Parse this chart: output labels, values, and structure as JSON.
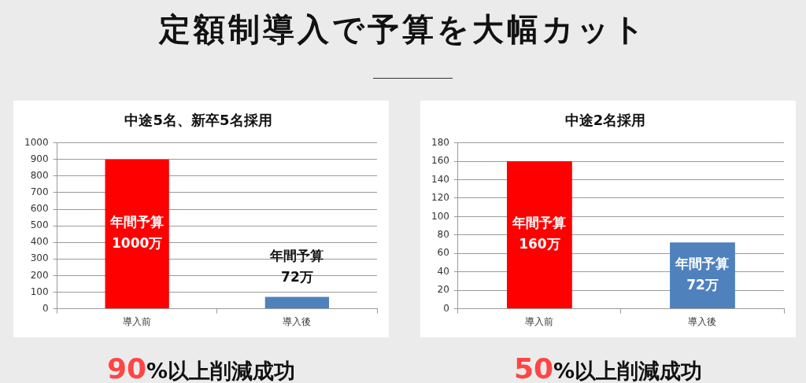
{
  "chart_data": [
    {
      "type": "other",
      "title": "定額制導入で予算を大幅カット"
    },
    {
      "type": "bar",
      "title": "中途5名、新卒5名採用",
      "categories": [
        "導入前",
        "導入後"
      ],
      "values": [
        900,
        72
      ],
      "colors": [
        "#ff0000",
        "#4f81bd"
      ],
      "ylim": [
        0,
        1000
      ],
      "yticks": [
        0,
        100,
        200,
        300,
        400,
        500,
        600,
        700,
        800,
        900,
        1000
      ],
      "grid": "y",
      "value_labels": [
        "年間予算\n1000万",
        "年間予算\n72万"
      ],
      "annotations": [
        "90%以上削減成功"
      ]
    },
    {
      "type": "bar",
      "title": "中途2名採用",
      "categories": [
        "導入前",
        "導入後"
      ],
      "values": [
        160,
        72
      ],
      "colors": [
        "#ff0000",
        "#4f81bd"
      ],
      "ylim": [
        0,
        180
      ],
      "yticks": [
        0,
        20,
        40,
        60,
        80,
        100,
        120,
        140,
        160,
        180
      ],
      "grid": "y",
      "value_labels": [
        "年間予算\n160万",
        "年間予算\n72万"
      ],
      "annotations": [
        "50%以上削減成功"
      ]
    }
  ]
}
